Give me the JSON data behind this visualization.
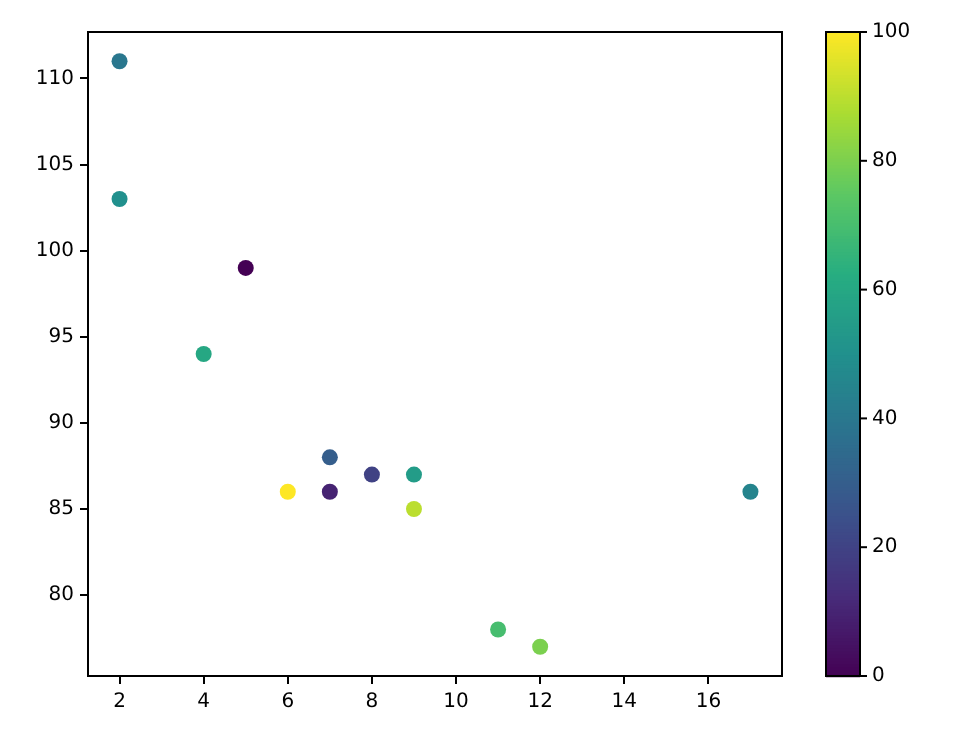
{
  "chart_data": {
    "type": "scatter",
    "x": [
      5,
      7,
      8,
      7,
      2,
      17,
      2,
      9,
      4,
      11,
      12,
      9,
      6
    ],
    "values": [
      99,
      86,
      87,
      88,
      111,
      86,
      103,
      87,
      94,
      78,
      77,
      85,
      86
    ],
    "cvalues": [
      0,
      10,
      20,
      30,
      40,
      45,
      50,
      55,
      60,
      70,
      80,
      90,
      100
    ],
    "xlim": [
      1.25,
      17.75
    ],
    "xticks": [
      2,
      4,
      6,
      8,
      10,
      12,
      14,
      16
    ],
    "ylim": [
      75.3,
      112.7
    ],
    "yticks": [
      80,
      85,
      90,
      95,
      100,
      105,
      110
    ],
    "clim": [
      0,
      100
    ],
    "cticks": [
      0,
      20,
      40,
      60,
      80,
      100
    ],
    "marker": "circle",
    "grid": false,
    "legend": false
  }
}
